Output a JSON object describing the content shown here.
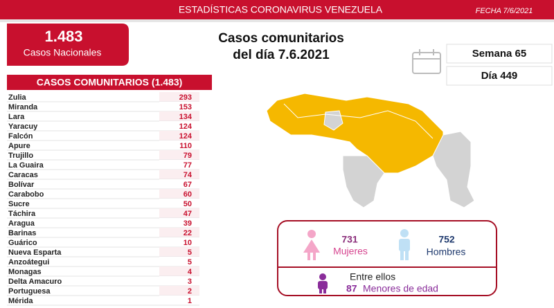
{
  "header": {
    "title": "ESTADÍSTICAS CORONAVIRUS VENEZUELA",
    "date": "FECHA 7/6/2021"
  },
  "national": {
    "value": "1.483",
    "label": "Casos Nacionales"
  },
  "headline": [
    "Casos comunitarios",
    "del día 7.6.2021"
  ],
  "week": "Semana 65",
  "day": "Día 449",
  "table": {
    "title": "CASOS COMUNITARIOS (1.483)",
    "rows": [
      [
        "Zulia",
        293
      ],
      [
        "Miranda",
        153
      ],
      [
        "Lara",
        134
      ],
      [
        "Yaracuy",
        124
      ],
      [
        "Falcón",
        124
      ],
      [
        "Apure",
        110
      ],
      [
        "Trujillo",
        79
      ],
      [
        "La Guaira",
        77
      ],
      [
        "Caracas",
        74
      ],
      [
        "Bolívar",
        67
      ],
      [
        "Carabobo",
        60
      ],
      [
        "Sucre",
        50
      ],
      [
        "Táchira",
        47
      ],
      [
        "Aragua",
        39
      ],
      [
        "Barinas",
        22
      ],
      [
        "Guárico",
        10
      ],
      [
        "Nueva Esparta",
        5
      ],
      [
        "Anzoátegui",
        5
      ],
      [
        "Monagas",
        4
      ],
      [
        "Delta Amacuro",
        3
      ],
      [
        "Portuguesa",
        2
      ],
      [
        "Mérida",
        1
      ]
    ]
  },
  "gender": {
    "women": {
      "value": "731",
      "label": "Mujeres"
    },
    "men": {
      "value": "752",
      "label": "Hombres"
    }
  },
  "minors": {
    "intro": "Entre ellos",
    "value": "87",
    "label": "Menores de edad"
  }
}
